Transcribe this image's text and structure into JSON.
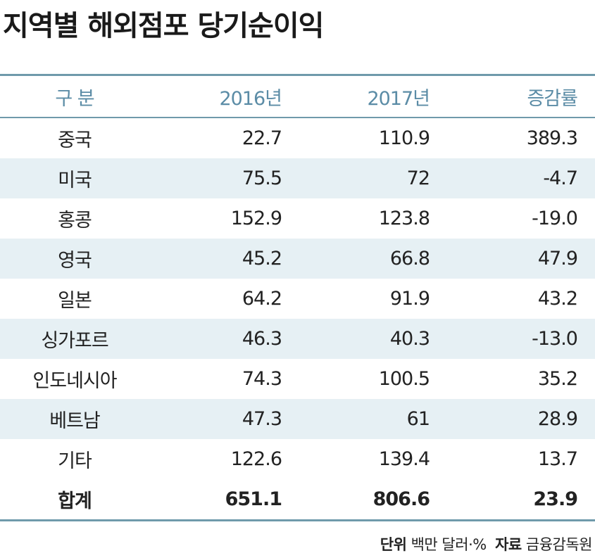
{
  "title": "지역별 해외점포 당기순이익",
  "chart_data": {
    "type": "table",
    "columns": [
      "구 분",
      "2016년",
      "2017년",
      "증감률"
    ],
    "rows": [
      [
        "중국",
        "22.7",
        "110.9",
        "389.3"
      ],
      [
        "미국",
        "75.5",
        "72",
        "-4.7"
      ],
      [
        "홍콩",
        "152.9",
        "123.8",
        "-19.0"
      ],
      [
        "영국",
        "45.2",
        "66.8",
        "47.9"
      ],
      [
        "일본",
        "64.2",
        "91.9",
        "43.2"
      ],
      [
        "싱가포르",
        "46.3",
        "40.3",
        "-13.0"
      ],
      [
        "인도네시아",
        "74.3",
        "100.5",
        "35.2"
      ],
      [
        "베트남",
        "47.3",
        "61",
        "28.9"
      ],
      [
        "기타",
        "122.6",
        "139.4",
        "13.7"
      ]
    ],
    "total": [
      "합계",
      "651.1",
      "806.6",
      "23.9"
    ]
  },
  "footer": {
    "unit_label": "단위",
    "unit_value": "백만 달러·%",
    "source_label": "자료",
    "source_value": "금융감독원"
  },
  "colors": {
    "accent": "#6f9aab",
    "header_text": "#5b8ca6",
    "stripe": "#e6f0f4"
  }
}
